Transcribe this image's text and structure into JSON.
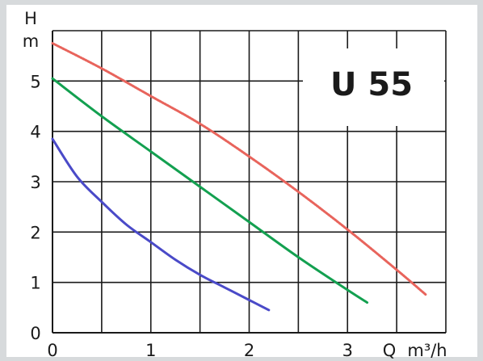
{
  "chart_data": {
    "type": "line",
    "title": "U 55",
    "xlabel_symbol": "Q",
    "xlabel_unit": "m³/h",
    "ylabel_symbol": "H",
    "ylabel_unit": "m",
    "xlim": [
      0,
      4
    ],
    "ylim": [
      0,
      6
    ],
    "x_ticks": [
      "0",
      "1",
      "2",
      "3"
    ],
    "y_ticks": [
      "0",
      "1",
      "2",
      "3",
      "4",
      "5"
    ],
    "grid": true,
    "series": [
      {
        "color": "#e8645c",
        "style": "dotted",
        "points": [
          [
            0,
            5.75
          ],
          [
            0.5,
            5.25
          ],
          [
            1,
            4.7
          ],
          [
            1.5,
            4.15
          ],
          [
            2,
            3.5
          ],
          [
            2.5,
            2.8
          ],
          [
            3,
            2.05
          ],
          [
            3.5,
            1.25
          ],
          [
            3.8,
            0.75
          ]
        ]
      },
      {
        "color": "#13a050",
        "style": "solid",
        "points": [
          [
            0,
            5.05
          ],
          [
            0.5,
            4.3
          ],
          [
            1,
            3.6
          ],
          [
            1.5,
            2.9
          ],
          [
            2,
            2.2
          ],
          [
            2.5,
            1.5
          ],
          [
            3,
            0.85
          ],
          [
            3.2,
            0.6
          ]
        ]
      },
      {
        "color": "#4a4ac8",
        "style": "solid",
        "points": [
          [
            0,
            3.85
          ],
          [
            0.25,
            3.1
          ],
          [
            0.5,
            2.6
          ],
          [
            0.75,
            2.15
          ],
          [
            1,
            1.8
          ],
          [
            1.25,
            1.45
          ],
          [
            1.5,
            1.15
          ],
          [
            1.75,
            0.9
          ],
          [
            2,
            0.65
          ],
          [
            2.2,
            0.45
          ]
        ]
      }
    ]
  }
}
